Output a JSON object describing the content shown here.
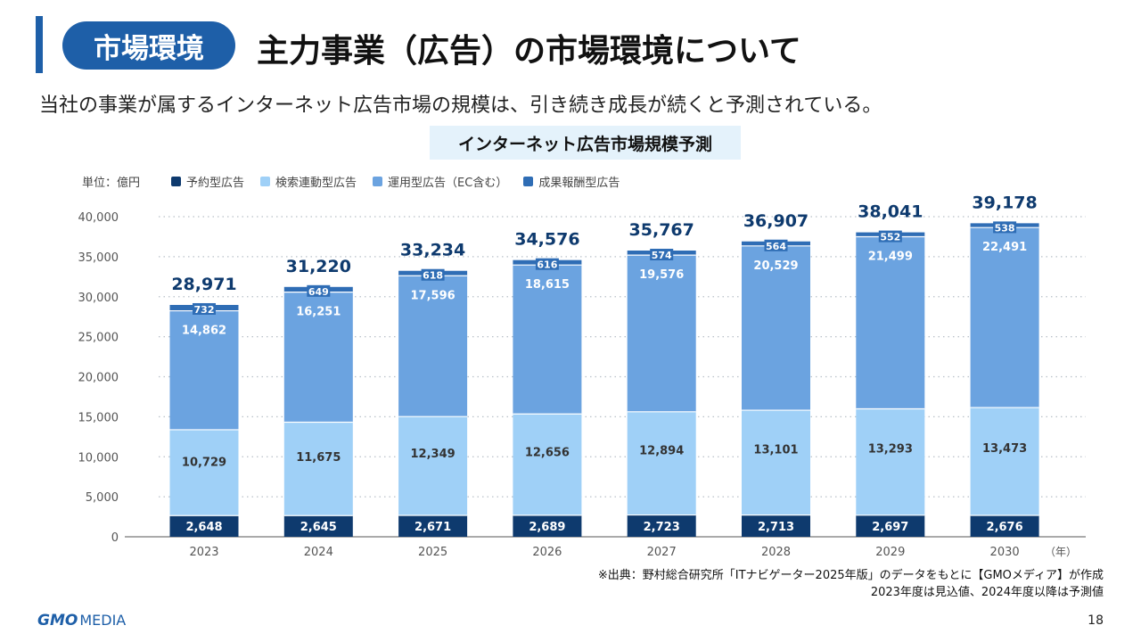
{
  "header": {
    "tag": "市場環境",
    "title": "主力事業（広告）の市場環境について",
    "subtitle": "当社の事業が属するインターネット広告市場の規模は、引き続き成長が続くと予測されている。"
  },
  "chart_title": "インターネット広告市場規模予測",
  "unit_label": "単位：億円",
  "colors": {
    "brand": "#1e5fa8",
    "s1": "#0e3a6e",
    "s2": "#9fd0f7",
    "s3": "#6ba3e0",
    "s4": "#2f6db5"
  },
  "chart_data": {
    "type": "bar",
    "stacked": true,
    "categories": [
      "2023",
      "2024",
      "2025",
      "2026",
      "2027",
      "2028",
      "2029",
      "2030"
    ],
    "xunit": "（年）",
    "ylim": [
      0,
      40000
    ],
    "yticks": [
      "0",
      "5,000",
      "10,000",
      "15,000",
      "20,000",
      "25,000",
      "30,000",
      "35,000",
      "40,000"
    ],
    "grid": true,
    "legend_position": "top-left",
    "series": [
      {
        "name": "予約型広告",
        "values": [
          2648,
          2645,
          2671,
          2689,
          2723,
          2713,
          2697,
          2676
        ],
        "labels": [
          "2,648",
          "2,645",
          "2,671",
          "2,689",
          "2,723",
          "2,713",
          "2,697",
          "2,676"
        ]
      },
      {
        "name": "検索連動型広告",
        "values": [
          10729,
          11675,
          12349,
          12656,
          12894,
          13101,
          13293,
          13473
        ],
        "labels": [
          "10,729",
          "11,675",
          "12,349",
          "12,656",
          "12,894",
          "13,101",
          "13,293",
          "13,473"
        ]
      },
      {
        "name": "運用型広告（EC含む）",
        "values": [
          14862,
          16251,
          17596,
          18615,
          19576,
          20529,
          21499,
          22491
        ],
        "labels": [
          "14,862",
          "16,251",
          "17,596",
          "18,615",
          "19,576",
          "20,529",
          "21,499",
          "22,491"
        ]
      },
      {
        "name": "成果報酬型広告",
        "values": [
          732,
          649,
          618,
          616,
          574,
          564,
          552,
          538
        ],
        "labels": [
          "732",
          "649",
          "618",
          "616",
          "574",
          "564",
          "552",
          "538"
        ]
      }
    ],
    "totals": [
      28971,
      31220,
      33234,
      34576,
      35767,
      36907,
      38041,
      39178
    ],
    "total_labels": [
      "28,971",
      "31,220",
      "33,234",
      "34,576",
      "35,767",
      "36,907",
      "38,041",
      "39,178"
    ]
  },
  "source": {
    "line1": "※出典：野村総合研究所「ITナビゲーター2025年版」のデータをもとに【GMOメディア】が作成",
    "line2": "2023年度は見込値、2024年度以降は予測値"
  },
  "logo": {
    "gmo": "GMO",
    "media": "MEDIA"
  },
  "page_number": "18"
}
